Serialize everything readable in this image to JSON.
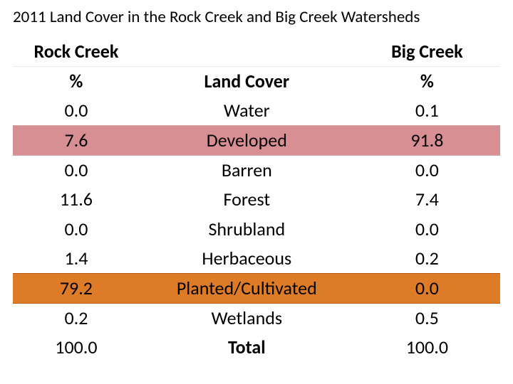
{
  "title": "2011 Land Cover in the Rock Creek and Big Creek Watersheds",
  "headers": {
    "rock": "Rock Creek",
    "pct_rock": "%",
    "landcover": "Land Cover",
    "big": "Big Creek",
    "pct_big": "%"
  },
  "rows": [
    {
      "rock": "0.0",
      "label": "Water",
      "big": "0.1",
      "highlight": null
    },
    {
      "rock": "7.6",
      "label": "Developed",
      "big": "91.8",
      "highlight": "pink"
    },
    {
      "rock": "0.0",
      "label": "Barren",
      "big": "0.0",
      "highlight": null
    },
    {
      "rock": "11.6",
      "label": "Forest",
      "big": "7.4",
      "highlight": null
    },
    {
      "rock": "0.0",
      "label": "Shrubland",
      "big": "0.0",
      "highlight": null
    },
    {
      "rock": "1.4",
      "label": "Herbaceous",
      "big": "0.2",
      "highlight": null
    },
    {
      "rock": "79.2",
      "label": "Planted/Cultivated",
      "big": "0.0",
      "highlight": "orange"
    },
    {
      "rock": "0.2",
      "label": "Wetlands",
      "big": "0.5",
      "highlight": null
    }
  ],
  "total": {
    "rock": "100.0",
    "label": "Total",
    "big": "100.0"
  },
  "colors": {
    "pink": "#d88f94",
    "orange": "#dd7b26",
    "text": "#000000",
    "background": "#ffffff"
  }
}
